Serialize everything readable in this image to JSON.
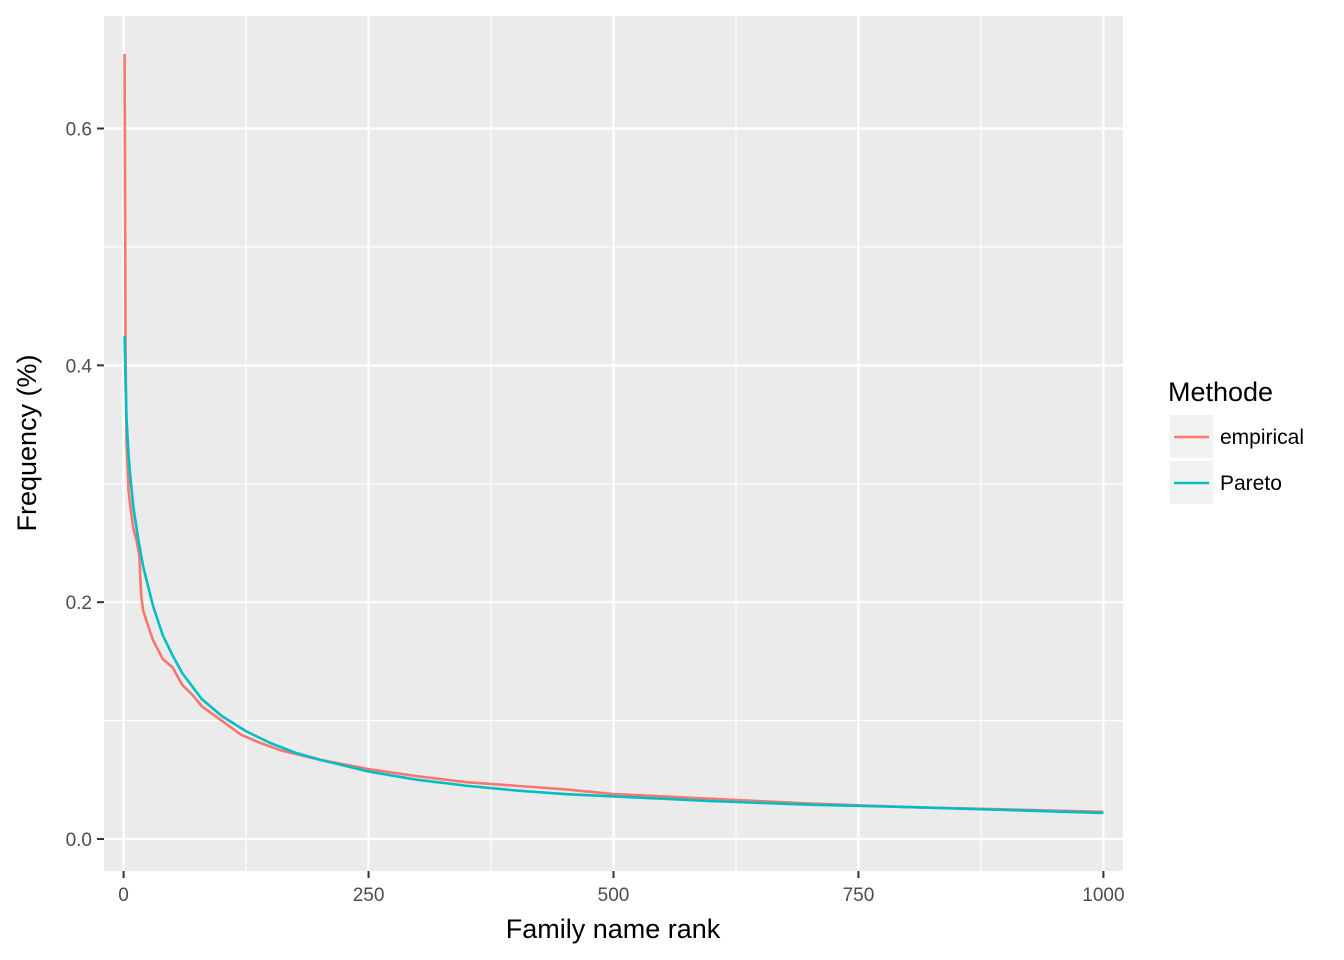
{
  "chart_data": {
    "type": "line",
    "title": "",
    "xlabel": "Family name rank",
    "ylabel": "Frequency (%)",
    "xlim": [
      -20,
      1020
    ],
    "ylim": [
      -0.027,
      0.695
    ],
    "x_ticks": [
      0,
      250,
      500,
      750,
      1000
    ],
    "x_tick_labels": [
      "0",
      "250",
      "500",
      "750",
      "1000"
    ],
    "y_ticks": [
      0.0,
      0.2,
      0.4,
      0.6
    ],
    "y_tick_labels": [
      "0.0",
      "0.2",
      "0.4",
      "0.6"
    ],
    "grid": true,
    "legend": {
      "title": "Methode",
      "position": "right"
    },
    "series": [
      {
        "name": "empirical",
        "color": "#F8766D",
        "x": [
          1,
          2,
          3,
          5,
          7,
          10,
          13,
          16,
          18,
          20,
          25,
          30,
          35,
          40,
          50,
          60,
          70,
          80,
          100,
          120,
          140,
          160,
          180,
          200,
          250,
          300,
          350,
          400,
          450,
          500,
          600,
          700,
          800,
          900,
          1000
        ],
        "y": [
          0.663,
          0.41,
          0.335,
          0.295,
          0.28,
          0.262,
          0.253,
          0.24,
          0.205,
          0.193,
          0.18,
          0.168,
          0.16,
          0.152,
          0.145,
          0.13,
          0.122,
          0.112,
          0.1,
          0.088,
          0.081,
          0.075,
          0.071,
          0.067,
          0.059,
          0.053,
          0.048,
          0.045,
          0.042,
          0.038,
          0.034,
          0.03,
          0.027,
          0.025,
          0.023
        ]
      },
      {
        "name": "Pareto",
        "color": "#00BFC4",
        "x": [
          1,
          2,
          3,
          5,
          7,
          10,
          15,
          20,
          30,
          40,
          50,
          60,
          80,
          100,
          125,
          150,
          175,
          200,
          250,
          300,
          350,
          400,
          450,
          500,
          600,
          700,
          800,
          900,
          1000
        ],
        "y": [
          0.425,
          0.385,
          0.355,
          0.325,
          0.305,
          0.28,
          0.253,
          0.23,
          0.197,
          0.172,
          0.155,
          0.14,
          0.118,
          0.104,
          0.091,
          0.081,
          0.073,
          0.067,
          0.057,
          0.05,
          0.045,
          0.041,
          0.038,
          0.036,
          0.032,
          0.029,
          0.027,
          0.0245,
          0.022
        ]
      }
    ]
  }
}
